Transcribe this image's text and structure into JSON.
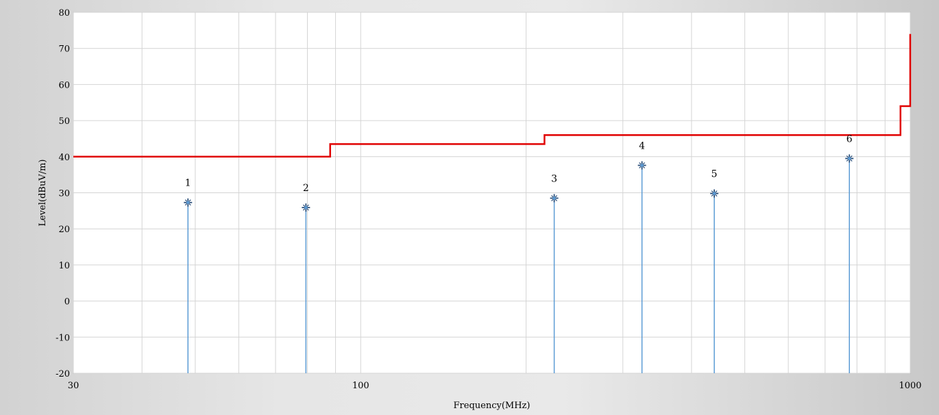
{
  "chart_data": {
    "type": "line",
    "xlabel": "Frequency(MHz)",
    "ylabel": "Level(dBuV/m)",
    "xscale": "log",
    "xlim": [
      30,
      1000
    ],
    "ylim": [
      -20,
      80
    ],
    "x_ticks": [
      30,
      100,
      1000
    ],
    "x_tick_labels": [
      "30",
      "100",
      "1000"
    ],
    "y_ticks": [
      -20,
      -10,
      0,
      10,
      20,
      30,
      40,
      50,
      60,
      70,
      80
    ],
    "y_tick_labels": [
      "-20",
      "-10",
      "0",
      "10",
      "20",
      "30",
      "40",
      "50",
      "60",
      "70",
      "80"
    ],
    "grid": true,
    "limit_line": {
      "color": "#e00000",
      "points": [
        [
          30,
          40
        ],
        [
          88,
          40
        ],
        [
          88,
          43.5
        ],
        [
          216,
          43.5
        ],
        [
          216,
          46
        ],
        [
          960,
          46
        ],
        [
          960,
          54
        ],
        [
          1000,
          54
        ],
        [
          1000,
          74
        ]
      ]
    },
    "markers": {
      "color": "#5b9bd5",
      "points": [
        {
          "label": "1",
          "x": 48.5,
          "y": 27.3
        },
        {
          "label": "2",
          "x": 79.5,
          "y": 25.9
        },
        {
          "label": "3",
          "x": 225,
          "y": 28.5
        },
        {
          "label": "4",
          "x": 325,
          "y": 37.6
        },
        {
          "label": "5",
          "x": 440,
          "y": 29.8
        },
        {
          "label": "6",
          "x": 775,
          "y": 39.5
        }
      ]
    }
  }
}
